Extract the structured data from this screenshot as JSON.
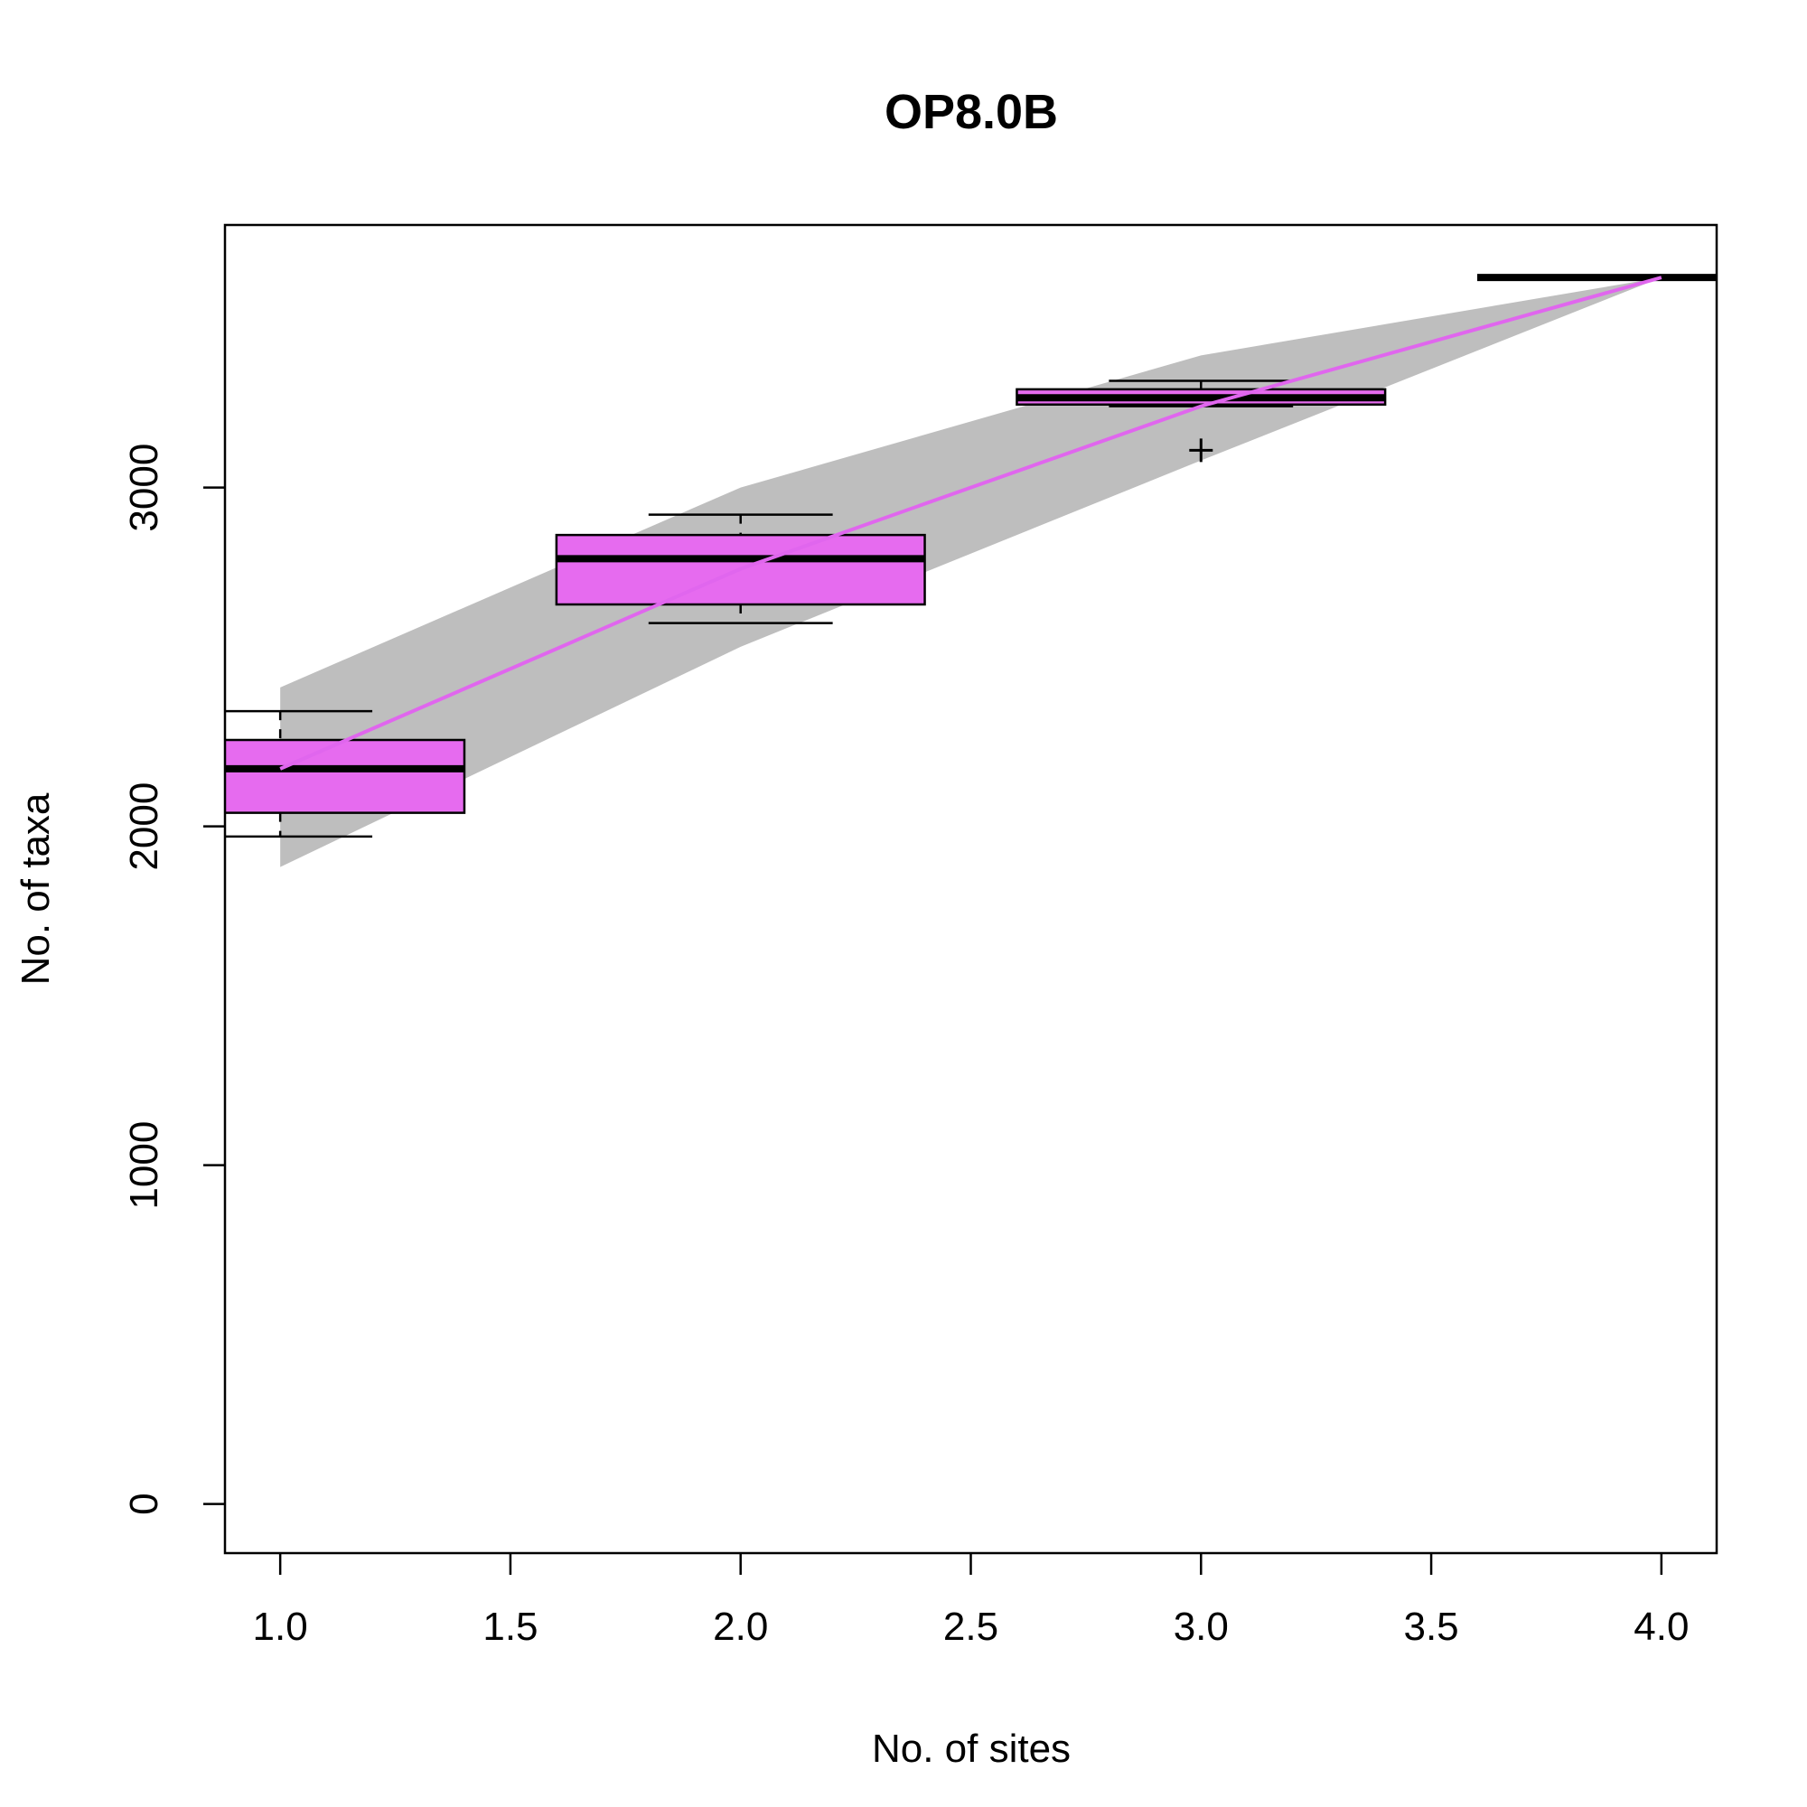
{
  "chart_data": {
    "type": "boxplot",
    "title": "OP8.0B",
    "xlabel": "No. of sites",
    "ylabel": "No. of taxa",
    "xlim": [
      0.88,
      4.12
    ],
    "ylim": [
      -145,
      3775
    ],
    "x_ticks": [
      "1.0",
      "1.5",
      "2.0",
      "2.5",
      "3.0",
      "3.5",
      "4.0"
    ],
    "x_tick_values": [
      1.0,
      1.5,
      2.0,
      2.5,
      3.0,
      3.5,
      4.0
    ],
    "y_ticks": [
      "0",
      "1000",
      "2000",
      "3000"
    ],
    "y_tick_values": [
      0,
      1000,
      2000,
      3000
    ],
    "colors": {
      "box_fill": "#e66bef",
      "curve": "#e066ee",
      "band": "#bebebe",
      "lines": "#000000"
    },
    "accumulation_curve": {
      "x": [
        1,
        2,
        3,
        4
      ],
      "y": [
        2170,
        2760,
        3240,
        3620
      ],
      "band_upper": [
        2410,
        3000,
        3390,
        3620
      ],
      "band_lower": [
        1880,
        2530,
        3080,
        3620
      ]
    },
    "boxes": [
      {
        "x": 1,
        "min": 1970,
        "q1": 2040,
        "median": 2170,
        "q3": 2255,
        "max": 2340,
        "outliers": []
      },
      {
        "x": 2,
        "min": 2600,
        "q1": 2655,
        "median": 2790,
        "q3": 2860,
        "max": 2920,
        "outliers": []
      },
      {
        "x": 3,
        "min": 3240,
        "q1": 3245,
        "median": 3265,
        "q3": 3290,
        "max": 3315,
        "outliers": [
          3110
        ]
      },
      {
        "x": 4,
        "min": 3620,
        "q1": 3620,
        "median": 3620,
        "q3": 3620,
        "max": 3620,
        "outliers": []
      }
    ],
    "box_width": 0.8,
    "whisker_width": 0.4,
    "grid": false,
    "legend": "none"
  }
}
